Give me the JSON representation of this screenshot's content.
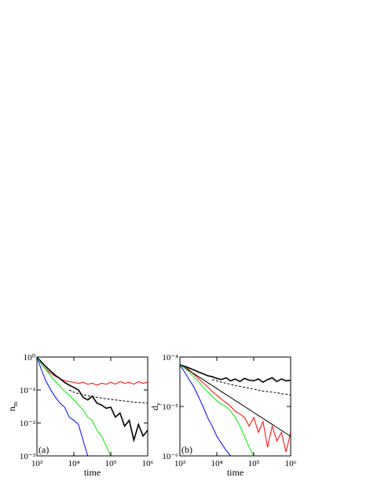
{
  "chart_data": [
    {
      "type": "line",
      "xlog": true,
      "ylog": true,
      "xlabel": "time",
      "ylabel": {
        "text": "n",
        "subscript": "m"
      },
      "annotation": "(a)",
      "xlim": [
        1000,
        1000000
      ],
      "ylim": [
        0.001,
        1
      ],
      "xticks": [
        {
          "value": 1000,
          "label": "10³"
        },
        {
          "value": 10000,
          "label": "10⁴"
        },
        {
          "value": 100000,
          "label": "10⁵"
        },
        {
          "value": 1000000,
          "label": "10⁶"
        }
      ],
      "yticks": [
        {
          "value": 0.001,
          "label": "10⁻³"
        },
        {
          "value": 0.01,
          "label": "10⁻²"
        },
        {
          "value": 0.1,
          "label": "10⁻¹"
        },
        {
          "value": 1,
          "label": "10⁰"
        }
      ],
      "x": [
        1000,
        1334,
        1778,
        2371,
        3162,
        4217,
        5623,
        7499,
        10000,
        13335,
        17783,
        23714,
        31623,
        42170,
        56234,
        74989,
        100000,
        133352,
        177828,
        237137,
        316228,
        421697,
        562341,
        749894,
        1000000
      ],
      "series": [
        {
          "color": "#ff0000",
          "style": "solid",
          "values": [
            1,
            0.6,
            0.42,
            0.32,
            0.26,
            0.22,
            0.19,
            0.18,
            0.17,
            0.16,
            0.17,
            0.15,
            0.16,
            0.14,
            0.16,
            0.15,
            0.17,
            0.15,
            0.18,
            0.16,
            0.17,
            0.15,
            0.18,
            0.16,
            0.17
          ]
        },
        {
          "color": "#000000",
          "style": "thick",
          "values": [
            1,
            0.7,
            0.5,
            0.37,
            0.28,
            0.22,
            0.17,
            0.14,
            0.12,
            0.1,
            0.06,
            0.05,
            0.065,
            0.04,
            0.035,
            0.028,
            0.03,
            0.015,
            0.02,
            0.008,
            0.012,
            0.003,
            0.009,
            0.004,
            0.006
          ]
        },
        {
          "color": "#000000",
          "style": "dashed",
          "values": [
            null,
            null,
            null,
            null,
            null,
            null,
            null,
            0.1,
            0.085,
            0.078,
            0.072,
            0.067,
            0.063,
            0.06,
            0.057,
            0.054,
            0.052,
            0.05,
            0.048,
            0.046,
            0.045,
            0.043,
            0.042,
            0.041,
            0.04
          ]
        },
        {
          "color": "#00ee00",
          "style": "solid",
          "values": [
            1,
            0.6,
            0.4,
            0.27,
            0.18,
            0.13,
            0.09,
            0.07,
            0.05,
            0.035,
            0.025,
            0.015,
            0.012,
            0.006,
            0.004,
            0.002,
            0.001,
            null,
            null,
            null,
            null,
            null,
            null,
            null,
            null
          ]
        },
        {
          "color": "#0000ff",
          "style": "solid",
          "values": [
            1,
            0.4,
            0.18,
            0.1,
            0.06,
            0.04,
            0.03,
            0.015,
            0.012,
            0.009,
            0.003,
            0.001,
            null,
            null,
            null,
            null,
            null,
            null,
            null,
            null,
            null,
            null,
            null,
            null,
            null
          ]
        }
      ]
    },
    {
      "type": "line",
      "xlog": true,
      "ylog": true,
      "xlabel": "time",
      "ylabel": {
        "text": "d",
        "subscript": "y"
      },
      "annotation": "(b)",
      "xlim": [
        1000,
        1000000
      ],
      "ylim": [
        1e-06,
        0.0001
      ],
      "xticks": [
        {
          "value": 1000,
          "label": "10³"
        },
        {
          "value": 10000,
          "label": "10⁴"
        },
        {
          "value": 100000,
          "label": "10⁵"
        },
        {
          "value": 1000000,
          "label": "10⁶"
        }
      ],
      "yticks": [
        {
          "value": 1e-06,
          "label": "10⁻⁶"
        },
        {
          "value": 1e-05,
          "label": "10⁻⁵"
        },
        {
          "value": 0.0001,
          "label": "10⁻⁴"
        }
      ],
      "x": [
        1000,
        1334,
        1778,
        2371,
        3162,
        4217,
        5623,
        7499,
        10000,
        13335,
        17783,
        23714,
        31623,
        42170,
        56234,
        74989,
        100000,
        133352,
        177828,
        237137,
        316228,
        421697,
        562341,
        749894,
        1000000
      ],
      "series": [
        {
          "color": "#ff0000",
          "style": "solid",
          "values": [
            7e-05,
            6.5e-05,
            5.5e-05,
            4.5e-05,
            3.7e-05,
            3e-05,
            2.5e-05,
            2e-05,
            1.7e-05,
            1.4e-05,
            1.2e-05,
            1e-05,
            8e-06,
            7e-06,
            6e-06,
            4e-06,
            6e-06,
            3e-06,
            5e-06,
            1.5e-06,
            4e-06,
            2e-06,
            3e-06,
            1.2e-06,
            3e-06
          ]
        },
        {
          "color": "#000000",
          "style": "thick",
          "values": [
            7e-05,
            6.5e-05,
            6e-05,
            5.5e-05,
            5e-05,
            4.6e-05,
            4.2e-05,
            4e-05,
            3.7e-05,
            3.5e-05,
            3.8e-05,
            3.3e-05,
            3.6e-05,
            3.2e-05,
            3.7e-05,
            3.4e-05,
            3.3e-05,
            3.6e-05,
            3.1e-05,
            3.5e-05,
            3.8e-05,
            3.2e-05,
            3.6e-05,
            3.3e-05,
            3.4e-05
          ]
        },
        {
          "color": "#000000",
          "style": "solid",
          "values": [
            7e-05,
            6.09e-05,
            5.3e-05,
            4.61e-05,
            4.02e-05,
            3.5e-05,
            3.04e-05,
            2.65e-05,
            2.3e-05,
            2e-05,
            1.74e-05,
            1.52e-05,
            1.32e-05,
            1.15e-05,
            1e-05,
            8.7e-06,
            7.57e-06,
            6.59e-06,
            5.74e-06,
            4.99e-06,
            4.34e-06,
            3.78e-06,
            3.29e-06,
            2.86e-06,
            2.49e-06
          ]
        },
        {
          "color": "#000000",
          "style": "dashed",
          "values": [
            null,
            null,
            null,
            null,
            null,
            null,
            null,
            3.5e-05,
            3.3e-05,
            3.1e-05,
            2.95e-05,
            2.8e-05,
            2.65e-05,
            2.55e-05,
            2.45e-05,
            2.35e-05,
            2.25e-05,
            2.15e-05,
            2.05e-05,
            2e-05,
            1.95e-05,
            1.9e-05,
            1.82e-05,
            1.76e-05,
            1.7e-05
          ]
        },
        {
          "color": "#00ee00",
          "style": "solid",
          "values": [
            7e-05,
            6e-05,
            5e-05,
            4e-05,
            3.2e-05,
            2.5e-05,
            2e-05,
            1.6e-05,
            1.3e-05,
            1.1e-05,
            1e-05,
            8e-06,
            6e-06,
            4e-06,
            2.5e-06,
            1.5e-06,
            1e-06,
            null,
            null,
            null,
            null,
            null,
            null,
            null,
            null
          ]
        },
        {
          "color": "#0000ff",
          "style": "solid",
          "values": [
            7e-05,
            5e-05,
            3.5e-05,
            2.5e-05,
            1.6e-05,
            1e-05,
            6e-06,
            4e-06,
            2.5e-06,
            1.8e-06,
            1.3e-06,
            1e-06,
            null,
            null,
            null,
            null,
            null,
            null,
            null,
            null,
            null,
            null,
            null,
            null,
            null
          ]
        }
      ]
    }
  ]
}
